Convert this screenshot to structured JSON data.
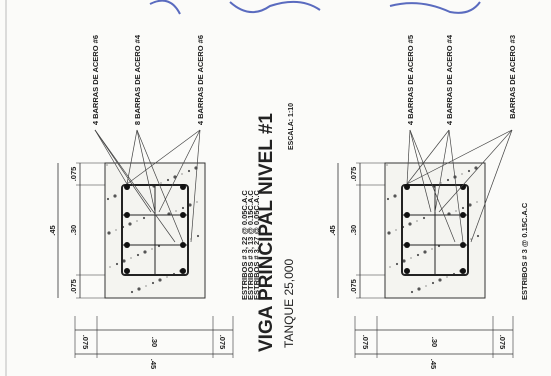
{
  "title": "VIGA PRINCIPAL NIVEL #1",
  "scale": "ESCALA: 1:10",
  "subtitle": "TANQUE 25,000",
  "sections": [
    {
      "labels": [
        "4 BARRAS DE ACERO #6",
        "8 BARRAS DE ACERO #4",
        "4 BARRAS DE ACERO #6"
      ],
      "vertical_dims": [
        ".075",
        ".30",
        ".075"
      ],
      "vertical_total": ".45",
      "horizontal_dims": [
        ".075",
        ".30",
        ".075"
      ],
      "horizontal_total": ".45",
      "stirrups": [
        "ESTRIBOS # 3, 22 @ 0.05C.A.C",
        "ESTRIBOS # 3, 13 @ 0.15C.A.C",
        "ESTRIBOS # 3, 27 @ 0.05C.A.C"
      ]
    },
    {
      "labels": [
        "4 BARRAS DE ACERO #5",
        "4 BARRAS DE ACERO #4",
        "BARRAS DE ACERO #3"
      ],
      "vertical_dims": [
        ".075",
        ".30",
        ".075"
      ],
      "vertical_total": ".45",
      "horizontal_dims": [
        ".075",
        ".30",
        ".075"
      ],
      "horizontal_total": ".45",
      "stirrups": [
        "ESTRIBOS # 3 @ 0.15C.A.C"
      ]
    }
  ]
}
